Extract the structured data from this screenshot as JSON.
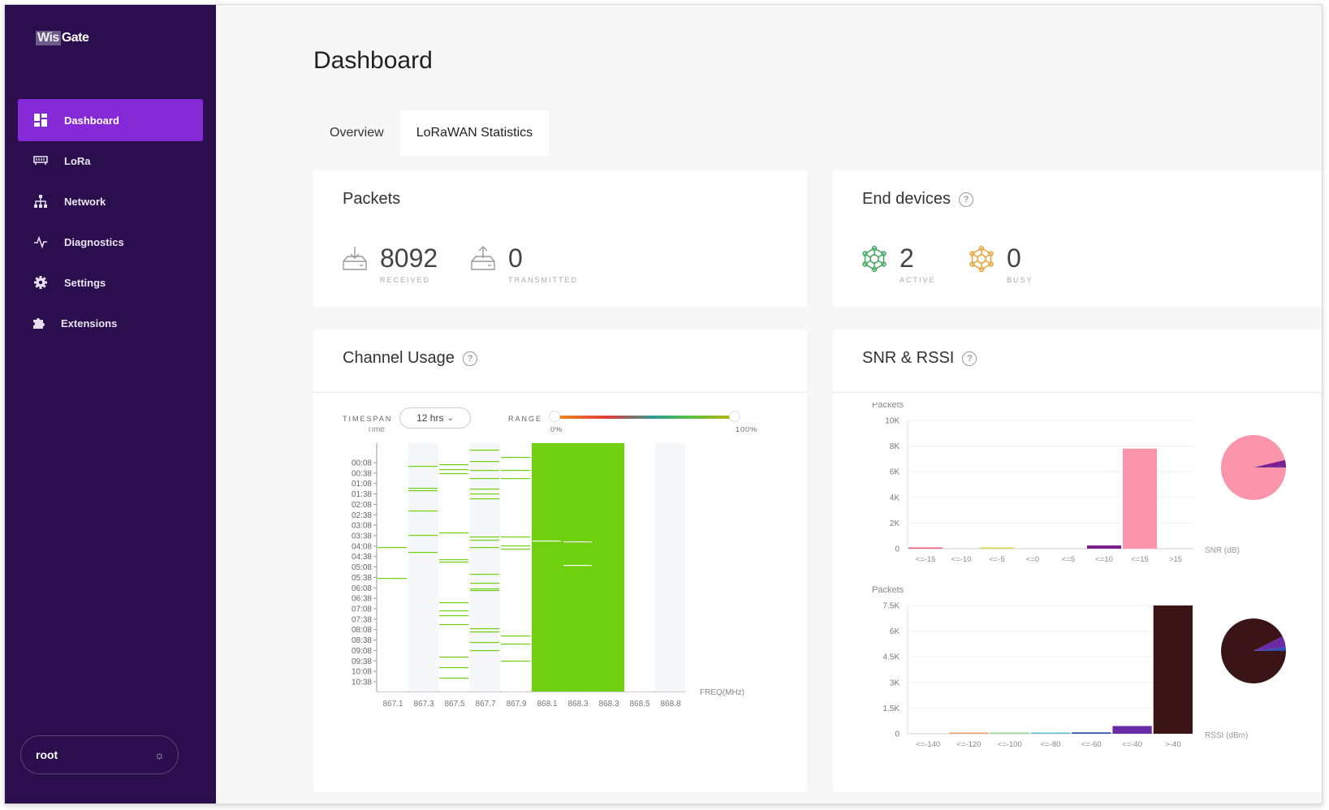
{
  "logo": {
    "box": "Wis",
    "text": "Gate"
  },
  "nav": [
    {
      "label": "Dashboard",
      "icon": "dashboard-icon",
      "active": true
    },
    {
      "label": "LoRa",
      "icon": "lora-icon",
      "active": false
    },
    {
      "label": "Network",
      "icon": "network-icon",
      "active": false
    },
    {
      "label": "Diagnostics",
      "icon": "diagnostics-icon",
      "active": false
    },
    {
      "label": "Settings",
      "icon": "gear-icon",
      "active": false
    },
    {
      "label": "Extensions",
      "icon": "puzzle-icon",
      "active": false
    }
  ],
  "user": {
    "name": "root",
    "theme_icon": "sun-icon"
  },
  "page": {
    "title": "Dashboard"
  },
  "tabs": [
    {
      "label": "Overview",
      "active": false
    },
    {
      "label": "LoRaWAN Statistics",
      "active": true
    }
  ],
  "packets": {
    "title": "Packets",
    "received": {
      "value": "8092",
      "label": "RECEIVED"
    },
    "transmitted": {
      "value": "0",
      "label": "TRANSMITTED"
    }
  },
  "end_devices": {
    "title": "End devices",
    "active": {
      "value": "2",
      "label": "ACTIVE"
    },
    "busy": {
      "value": "0",
      "label": "BUSY"
    }
  },
  "channel_usage": {
    "title": "Channel Usage",
    "timespan_label": "TIMESPAN",
    "timespan_value": "12 hrs",
    "range_label": "RANGE",
    "range_min": "0%",
    "range_max": "100%",
    "time_label": "Time",
    "freq_label": "FREQ(MHz)"
  },
  "snr_rssi": {
    "title": "SNR & RSSI"
  },
  "colors": {
    "sidebar": "#2a0e4e",
    "accent": "#8629d6",
    "usage": "#6fd10f",
    "snr": "#fc94ab",
    "rssi": "#3b1418",
    "purple": "#6a2aa5"
  },
  "chart_data": [
    {
      "type": "heatmap",
      "title": "Channel Usage",
      "xlabel": "FREQ(MHz)",
      "ylabel": "Time",
      "x": [
        "867.1",
        "867.3",
        "867.5",
        "867.7",
        "867.9",
        "868.1",
        "868.3",
        "868.3",
        "868.5",
        "868.8"
      ],
      "y": [
        "00:08",
        "00:38",
        "01:08",
        "01:38",
        "02:08",
        "02:38",
        "03:08",
        "03:38",
        "04:08",
        "04:38",
        "05:08",
        "05:38",
        "06:08",
        "06:38",
        "07:08",
        "07:38",
        "08:08",
        "08:38",
        "09:08",
        "09:38",
        "10:08",
        "10:38"
      ],
      "usage_level": [
        "low",
        "low",
        "low",
        "low",
        "low",
        "high",
        "high",
        "high",
        "none",
        "none"
      ]
    },
    {
      "type": "bar",
      "ylabel": "Packets",
      "xlabel": "SNR (dB)",
      "categories": [
        "<=-15",
        "<=-10",
        "<=-5",
        "<=0",
        "<=5",
        "<=10",
        "<=15",
        ">15"
      ],
      "values": [
        30,
        0,
        20,
        0,
        0,
        250,
        7800,
        0
      ],
      "yticks": [
        "0",
        "2K",
        "4K",
        "6K",
        "8K",
        "10K"
      ],
      "ylim": [
        0,
        10000
      ],
      "bar_colors": [
        "#f25f7a",
        "#f25f7a",
        "#d8d84a",
        "#d8d84a",
        "#d8d84a",
        "#7a1f8c",
        "#fc94ab",
        "#fc94ab"
      ]
    },
    {
      "type": "bar",
      "ylabel": "Packets",
      "xlabel": "RSSI (dBm)",
      "categories": [
        "<=-140",
        "<=-120",
        "<=-100",
        "<=-80",
        "<=-60",
        "<=-40",
        ">-40"
      ],
      "values": [
        0,
        20,
        30,
        20,
        80,
        450,
        7500
      ],
      "yticks": [
        "0",
        "1.5K",
        "3K",
        "4.5K",
        "6K",
        "7.5K"
      ],
      "ylim": [
        0,
        7500
      ],
      "bar_colors": [
        "#e8a0a0",
        "#e8a070",
        "#9ad6a0",
        "#60c0d0",
        "#3050b0",
        "#6a2aa5",
        "#3b1418"
      ]
    },
    {
      "type": "pie",
      "series_of": "SNR",
      "values": [
        7800,
        250,
        50
      ],
      "colors": [
        "#fc94ab",
        "#7a1f8c",
        "#6a2aa5"
      ]
    },
    {
      "type": "pie",
      "series_of": "RSSI",
      "values": [
        7500,
        450,
        150
      ],
      "colors": [
        "#3b1418",
        "#6a2aa5",
        "#3050b0"
      ]
    }
  ]
}
